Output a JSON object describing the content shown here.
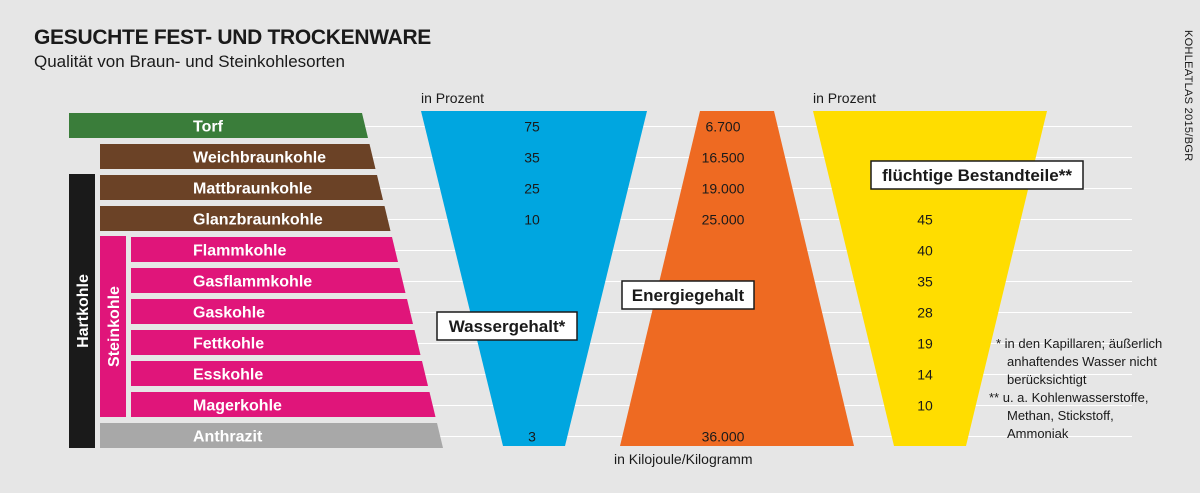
{
  "title": "GESUCHTE FEST- UND TROCKENWARE",
  "subtitle": "Qualität von Braun- und Steinkohlesorten",
  "source": "KOHLEATLAS 2015/BGR",
  "colors": {
    "torf": "#3a7d3a",
    "braun": "#6b4226",
    "stein": "#e0157a",
    "anthrazit": "#a8a8a8",
    "wasser": "#00a6e0",
    "energie": "#ee6a22",
    "fluechtig": "#ffdd00",
    "hart": "#1a1a1a"
  },
  "chart_data": {
    "type": "table",
    "group_labels": {
      "hartkohle": "Hartkohle",
      "steinkohle": "Steinkohle"
    },
    "categories": [
      "Torf",
      "Weichbraunkohle",
      "Mattbraunkohle",
      "Glanzbraunkohle",
      "Flammkohle",
      "Gasflammkohle",
      "Gaskohle",
      "Fettkohle",
      "Esskohle",
      "Magerkohle",
      "Anthrazit"
    ],
    "category_groups": [
      "torf",
      "braun",
      "braun",
      "braun",
      "stein",
      "stein",
      "stein",
      "stein",
      "stein",
      "stein",
      "anthrazit"
    ],
    "series": [
      {
        "name": "Wassergehalt*",
        "unit_label": "in Prozent",
        "labels": [
          "75",
          "35",
          "25",
          "10",
          "",
          "",
          "",
          "",
          "",
          "",
          "3"
        ]
      },
      {
        "name": "Energiegehalt",
        "unit_label": "in Kilojoule/Kilogramm",
        "labels": [
          "6.700",
          "16.500",
          "19.000",
          "25.000",
          "",
          "",
          "",
          "",
          "",
          "",
          "36.000"
        ]
      },
      {
        "name": "flüchtige Bestandteile**",
        "unit_label": "in Prozent",
        "labels": [
          "",
          "",
          "",
          "45",
          "40",
          "35",
          "28",
          "19",
          "14",
          "10",
          ""
        ]
      }
    ],
    "footnotes": [
      "* in den Kapillaren; äußerlich",
      "anhaftendes Wasser nicht",
      "berücksichtigt",
      "** u. a. Kohlenwasserstoffe,",
      "Methan, Stickstoff,",
      "Ammoniak"
    ]
  }
}
